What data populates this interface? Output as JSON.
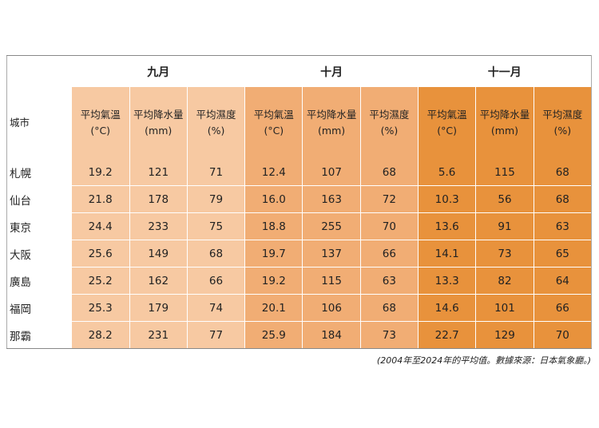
{
  "table": {
    "city_header": "城市",
    "months": [
      {
        "label": "九月"
      },
      {
        "label": "十月"
      },
      {
        "label": "十一月"
      }
    ],
    "sub_headers": [
      {
        "line1": "平均氣溫",
        "line2": "(°C)"
      },
      {
        "line1": "平均降水量",
        "line2": "(mm)"
      },
      {
        "line1": "平均濕度",
        "line2": "(%)"
      }
    ],
    "rows": [
      {
        "city": "札幌",
        "values": [
          "19.2",
          "121",
          "71",
          "12.4",
          "107",
          "68",
          "5.6",
          "115",
          "68"
        ]
      },
      {
        "city": "仙台",
        "values": [
          "21.8",
          "178",
          "79",
          "16.0",
          "163",
          "72",
          "10.3",
          "56",
          "68"
        ]
      },
      {
        "city": "東京",
        "values": [
          "24.4",
          "233",
          "75",
          "18.8",
          "255",
          "70",
          "13.6",
          "91",
          "63"
        ]
      },
      {
        "city": "大阪",
        "values": [
          "25.6",
          "149",
          "68",
          "19.7",
          "137",
          "66",
          "14.1",
          "73",
          "65"
        ]
      },
      {
        "city": "廣島",
        "values": [
          "25.2",
          "162",
          "66",
          "19.2",
          "115",
          "63",
          "13.3",
          "82",
          "64"
        ]
      },
      {
        "city": "福岡",
        "values": [
          "25.3",
          "179",
          "74",
          "20.1",
          "106",
          "68",
          "14.6",
          "101",
          "66"
        ]
      },
      {
        "city": "那霸",
        "values": [
          "28.2",
          "231",
          "77",
          "25.9",
          "184",
          "73",
          "22.7",
          "129",
          "70"
        ]
      }
    ]
  },
  "footnote": "(2004年至2024年的平均值。數據來源：日本氣象廳。)",
  "colors": {
    "september": "#f7c9a2",
    "october": "#f1ad74",
    "november": "#e8923c"
  }
}
